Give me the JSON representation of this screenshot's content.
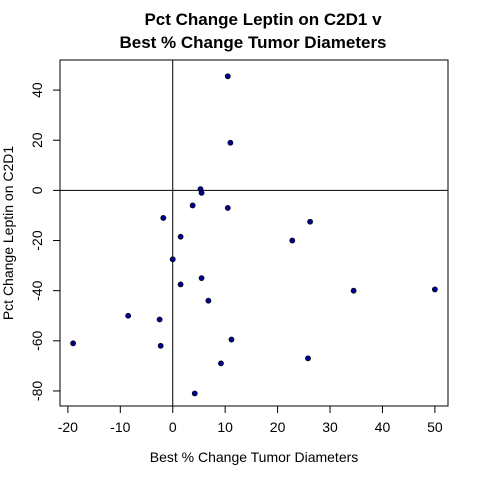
{
  "chart_data": {
    "type": "scatter",
    "title": [
      "Pct Change Leptin on C2D1 v",
      "Best % Change Tumor Diameters"
    ],
    "xlabel": "Best % Change Tumor Diameters",
    "ylabel": "Pct Change Leptin on C2D1",
    "xlim": [
      -21.5,
      52.5
    ],
    "ylim": [
      -86,
      52
    ],
    "xticks": [
      -20,
      -10,
      0,
      10,
      20,
      30,
      40,
      50
    ],
    "xtick_labels": [
      "-20",
      "-10",
      "0",
      "10",
      "20",
      "30",
      "40",
      "50"
    ],
    "yticks": [
      -80,
      -60,
      -40,
      -20,
      0,
      20,
      40
    ],
    "ytick_labels": [
      "-80",
      "-60",
      "-40",
      "-20",
      "0",
      "20",
      "40"
    ],
    "reference_lines": {
      "x": 0,
      "y": 0
    },
    "grid": false,
    "legend": false,
    "point_color": "#00008B",
    "points": [
      {
        "x": 10.5,
        "y": 45.5
      },
      {
        "x": 11,
        "y": 19
      },
      {
        "x": 5.3,
        "y": 0.5
      },
      {
        "x": 5.5,
        "y": -1
      },
      {
        "x": 3.8,
        "y": -6
      },
      {
        "x": 10.5,
        "y": -7
      },
      {
        "x": -1.8,
        "y": -11
      },
      {
        "x": 26.2,
        "y": -12.5
      },
      {
        "x": 1.5,
        "y": -18.5
      },
      {
        "x": 22.8,
        "y": -20
      },
      {
        "x": 0,
        "y": -27.5
      },
      {
        "x": 5.5,
        "y": -35
      },
      {
        "x": 1.5,
        "y": -37.5
      },
      {
        "x": 34.5,
        "y": -40
      },
      {
        "x": 50,
        "y": -39.5
      },
      {
        "x": 6.8,
        "y": -44
      },
      {
        "x": -8.5,
        "y": -50
      },
      {
        "x": -2.5,
        "y": -51.5
      },
      {
        "x": 11.2,
        "y": -59.5
      },
      {
        "x": -19,
        "y": -61
      },
      {
        "x": -2.3,
        "y": -62
      },
      {
        "x": 25.8,
        "y": -67
      },
      {
        "x": 9.2,
        "y": -69
      },
      {
        "x": 4.2,
        "y": -81
      }
    ]
  }
}
